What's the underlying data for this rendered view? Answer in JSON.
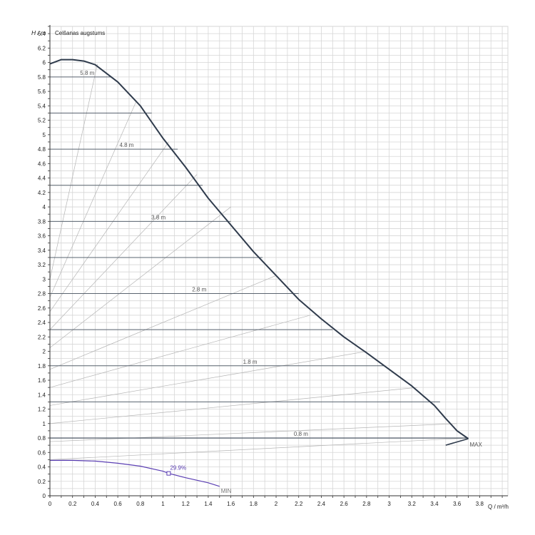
{
  "chart_data": {
    "type": "line",
    "title": "Celšanas augstums",
    "xlabel": "Q / m³/h",
    "ylabel": "H / m",
    "xlim": [
      0,
      4.05
    ],
    "ylim": [
      0,
      6.5
    ],
    "grid": true,
    "x_ticks": [
      "0",
      "0.2",
      "0.4",
      "0.6",
      "0.8",
      "1",
      "1.2",
      "1.4",
      "1.6",
      "1.8",
      "2",
      "2.2",
      "2.4",
      "2.6",
      "2.8",
      "3",
      "3.2",
      "3.4",
      "3.6",
      "3.8"
    ],
    "y_ticks": [
      "0",
      "0.2",
      "0.4",
      "0.6",
      "0.8",
      "1",
      "1.2",
      "1.4",
      "1.6",
      "1.8",
      "2",
      "2.2",
      "2.4",
      "2.6",
      "2.8",
      "3",
      "3.2",
      "3.4",
      "3.6",
      "3.8",
      "4",
      "4.2",
      "4.4",
      "4.6",
      "4.8",
      "5",
      "5.2",
      "5.4",
      "5.6",
      "5.8",
      "6",
      "6.2",
      "6.4"
    ],
    "series": [
      {
        "name": "MAX",
        "color": "#2f3b4c",
        "x": [
          0,
          0.1,
          0.2,
          0.3,
          0.4,
          0.6,
          0.8,
          1.0,
          1.2,
          1.4,
          1.6,
          1.8,
          2.0,
          2.2,
          2.4,
          2.6,
          2.8,
          3.0,
          3.2,
          3.4,
          3.5,
          3.6,
          3.7
        ],
        "y": [
          5.98,
          6.04,
          6.04,
          6.02,
          5.97,
          5.73,
          5.4,
          4.95,
          4.55,
          4.12,
          3.75,
          3.38,
          3.05,
          2.72,
          2.45,
          2.2,
          1.98,
          1.75,
          1.52,
          1.25,
          1.07,
          0.9,
          0.79
        ]
      },
      {
        "name": "MIN",
        "color": "#5b3fb3",
        "x": [
          0,
          0.2,
          0.4,
          0.6,
          0.8,
          1.0,
          1.05,
          1.2,
          1.4,
          1.5
        ],
        "y": [
          0.49,
          0.49,
          0.48,
          0.45,
          0.41,
          0.34,
          0.31,
          0.25,
          0.18,
          0.13
        ]
      }
    ],
    "max_tail": {
      "x": [
        3.7,
        3.5
      ],
      "y": [
        0.79,
        0.7
      ]
    },
    "operating_point": {
      "x": 1.05,
      "y": 0.31,
      "label": "29.9%"
    },
    "setpoint_lines": [
      {
        "h": 5.8,
        "x_end": 0.55,
        "label": "5.8 m"
      },
      {
        "h": 5.3,
        "x_end": 0.9
      },
      {
        "h": 4.8,
        "x_end": 1.13,
        "label": "4.8 m"
      },
      {
        "h": 4.3,
        "x_end": 1.35
      },
      {
        "h": 3.8,
        "x_end": 1.6,
        "label": "3.8 m"
      },
      {
        "h": 3.3,
        "x_end": 1.88
      },
      {
        "h": 2.8,
        "x_end": 2.2,
        "label": "2.8 m"
      },
      {
        "h": 2.3,
        "x_end": 2.5
      },
      {
        "h": 1.8,
        "x_end": 2.95,
        "label": "1.8 m"
      },
      {
        "h": 1.3,
        "x_end": 3.45
      },
      {
        "h": 0.8,
        "x_end": 3.7,
        "label": "0.8 m"
      }
    ],
    "control_curves": [
      {
        "x0": 0,
        "y0": 3.0,
        "x1": 0.42,
        "y1": 5.98
      },
      {
        "x0": 0,
        "y0": 2.75,
        "x1": 0.76,
        "y1": 5.45
      },
      {
        "x0": 0,
        "y0": 2.55,
        "x1": 1.05,
        "y1": 4.9
      },
      {
        "x0": 0,
        "y0": 2.3,
        "x1": 1.3,
        "y1": 4.45
      },
      {
        "x0": 0,
        "y0": 2.05,
        "x1": 1.6,
        "y1": 4.0
      },
      {
        "x0": 0,
        "y0": 1.75,
        "x1": 2.0,
        "y1": 3.05
      },
      {
        "x0": 0,
        "y0": 1.5,
        "x1": 2.3,
        "y1": 2.5
      },
      {
        "x0": 0,
        "y0": 1.25,
        "x1": 2.8,
        "y1": 2.0
      },
      {
        "x0": 0,
        "y0": 1.0,
        "x1": 3.25,
        "y1": 1.5
      },
      {
        "x0": 0,
        "y0": 0.75,
        "x1": 3.6,
        "y1": 1.0
      },
      {
        "x0": 0,
        "y0": 0.5,
        "x1": 3.7,
        "y1": 0.8
      }
    ],
    "end_labels": {
      "max": "MAX",
      "min": "MIN"
    }
  }
}
